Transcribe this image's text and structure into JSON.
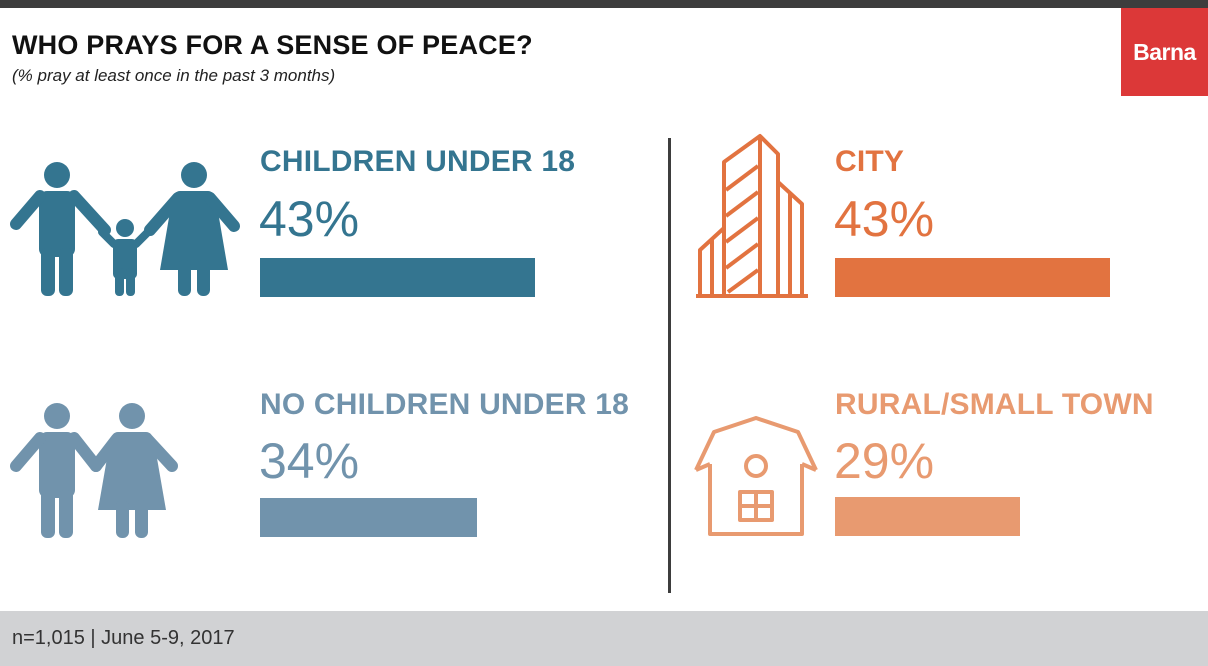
{
  "title": "WHO PRAYS FOR A SENSE OF PEACE?",
  "subtitle": "(% pray at least once in the past 3 months)",
  "logo": "Barna",
  "footer": "n=1,015 | June 5-9, 2017",
  "chart_data": {
    "type": "bar",
    "title": "WHO PRAYS FOR A SENSE OF PEACE?",
    "subtitle": "(% pray at least once in the past 3 months)",
    "unit": "%",
    "ylim": [
      0,
      100
    ],
    "items": [
      {
        "label": "CHILDREN UNDER 18",
        "value": 43,
        "display": "43%",
        "color": "#347590",
        "icon": "family-with-child-icon"
      },
      {
        "label": "NO CHILDREN UNDER 18",
        "value": 34,
        "display": "34%",
        "color": "#7193ac",
        "icon": "couple-icon"
      },
      {
        "label": "CITY",
        "value": 43,
        "display": "43%",
        "color": "#e27340",
        "icon": "skyscraper-icon"
      },
      {
        "label": "RURAL/SMALL TOWN",
        "value": 29,
        "display": "29%",
        "color": "#e89a70",
        "icon": "barn-icon"
      }
    ]
  }
}
